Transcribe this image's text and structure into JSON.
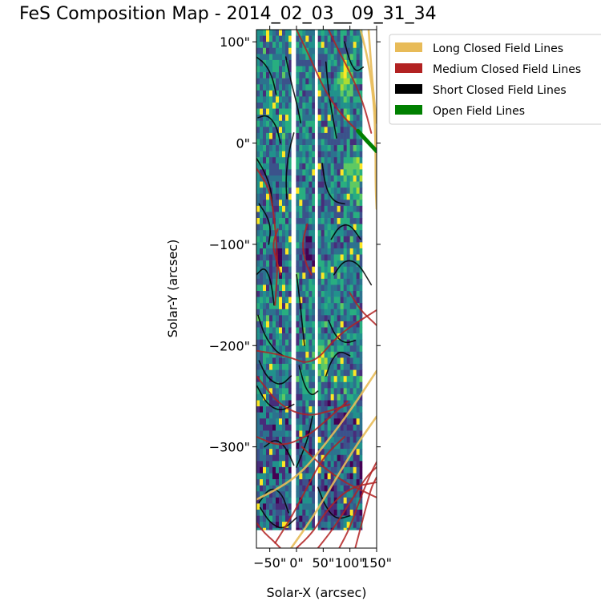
{
  "chart_data": {
    "type": "heatmap",
    "title": "FeS Composition Map - 2014_02_03__09_31_34",
    "xlabel": "Solar-X (arcsec)",
    "ylabel": "Solar-Y (arcsec)",
    "xlim": [
      -75,
      150
    ],
    "ylim": [
      -400,
      112
    ],
    "x_ticks": [
      {
        "value": -50,
        "label": "−50\""
      },
      {
        "value": 0,
        "label": "0\""
      },
      {
        "value": 50,
        "label": "50\""
      },
      {
        "value": 100,
        "label": "100\""
      },
      {
        "value": 150,
        "label": "150\""
      }
    ],
    "y_ticks": [
      {
        "value": 100,
        "label": "100\""
      },
      {
        "value": 0,
        "label": "0\""
      },
      {
        "value": -100,
        "label": "−100\""
      },
      {
        "value": -200,
        "label": "−200\""
      },
      {
        "value": -300,
        "label": "−300\""
      }
    ],
    "colormap": "viridis",
    "data_strips_x": [
      [
        -75,
        -10
      ],
      [
        -1,
        34
      ],
      [
        40,
        123
      ]
    ],
    "data_ylim": [
      -382,
      112
    ],
    "low_value_regions": [
      {
        "x": -35,
        "y": -110
      },
      {
        "x": 20,
        "y": -105
      }
    ],
    "high_value_regions": [
      {
        "x": 105,
        "y": -30
      },
      {
        "x": 90,
        "y": 70
      },
      {
        "x": 40,
        "y": -210
      }
    ],
    "legend": {
      "position": "upper-right-outside",
      "entries": [
        {
          "label": "Long Closed Field Lines",
          "color": "#e8bb58"
        },
        {
          "label": "Medium Closed Field Lines",
          "color": "#b22222"
        },
        {
          "label": "Short Closed Field Lines",
          "color": "#000000"
        },
        {
          "label": "Open Field Lines",
          "color": "#008000"
        }
      ]
    },
    "field_lines": {
      "short": [
        [
          [
            -75,
            85
          ],
          [
            -58,
            78
          ],
          [
            -45,
            65
          ],
          [
            -38,
            48
          ]
        ],
        [
          [
            -72,
            25
          ],
          [
            -55,
            28
          ],
          [
            -38,
            18
          ],
          [
            -30,
            0
          ]
        ],
        [
          [
            -75,
            -15
          ],
          [
            -60,
            -28
          ],
          [
            -48,
            -45
          ],
          [
            -45,
            -62
          ]
        ],
        [
          [
            -70,
            -60
          ],
          [
            -55,
            -72
          ],
          [
            -48,
            -85
          ],
          [
            -52,
            -100
          ]
        ],
        [
          [
            -75,
            -130
          ],
          [
            -60,
            -122
          ],
          [
            -48,
            -135
          ],
          [
            -42,
            -160
          ]
        ],
        [
          [
            -72,
            -170
          ],
          [
            -60,
            -190
          ],
          [
            -40,
            -205
          ],
          [
            -25,
            -210
          ]
        ],
        [
          [
            -70,
            -215
          ],
          [
            -55,
            -232
          ],
          [
            -30,
            -240
          ],
          [
            -10,
            -230
          ]
        ],
        [
          [
            -74,
            -240
          ],
          [
            -55,
            -258
          ],
          [
            -30,
            -265
          ],
          [
            -5,
            -258
          ]
        ],
        [
          [
            -60,
            -300
          ],
          [
            -40,
            -292
          ],
          [
            -20,
            -300
          ],
          [
            -5,
            -318
          ]
        ],
        [
          [
            -70,
            -355
          ],
          [
            -50,
            -340
          ],
          [
            -28,
            -345
          ],
          [
            -15,
            -365
          ]
        ],
        [
          [
            -20,
            85
          ],
          [
            -10,
            60
          ],
          [
            0,
            40
          ],
          [
            8,
            20
          ]
        ],
        [
          [
            -5,
            10
          ],
          [
            -15,
            -10
          ],
          [
            -20,
            -35
          ],
          [
            -18,
            -55
          ]
        ],
        [
          [
            0,
            -130
          ],
          [
            5,
            -150
          ],
          [
            10,
            -175
          ],
          [
            15,
            -200
          ]
        ],
        [
          [
            5,
            -220
          ],
          [
            15,
            -240
          ],
          [
            28,
            -250
          ],
          [
            40,
            -245
          ]
        ],
        [
          [
            30,
            -270
          ],
          [
            22,
            -290
          ],
          [
            12,
            -305
          ],
          [
            0,
            -320
          ]
        ],
        [
          [
            55,
            80
          ],
          [
            60,
            50
          ],
          [
            68,
            25
          ],
          [
            75,
            5
          ]
        ],
        [
          [
            48,
            -20
          ],
          [
            55,
            -45
          ],
          [
            70,
            -58
          ],
          [
            90,
            -60
          ]
        ],
        [
          [
            65,
            -95
          ],
          [
            80,
            -82
          ],
          [
            100,
            -80
          ],
          [
            120,
            -95
          ]
        ],
        [
          [
            70,
            -130
          ],
          [
            90,
            -115
          ],
          [
            115,
            -118
          ],
          [
            140,
            -140
          ]
        ],
        [
          [
            60,
            -175
          ],
          [
            72,
            -190
          ],
          [
            90,
            -198
          ],
          [
            110,
            -195
          ]
        ],
        [
          [
            55,
            -230
          ],
          [
            65,
            -215
          ],
          [
            80,
            -205
          ],
          [
            100,
            -210
          ]
        ],
        [
          [
            90,
            100
          ],
          [
            100,
            80
          ],
          [
            112,
            70
          ],
          [
            125,
            75
          ]
        ],
        [
          [
            -68,
            -360
          ],
          [
            -50,
            -375
          ],
          [
            -25,
            -382
          ],
          [
            0,
            -370
          ]
        ],
        [
          [
            40,
            -340
          ],
          [
            55,
            -360
          ],
          [
            75,
            -372
          ],
          [
            100,
            -368
          ]
        ]
      ],
      "medium": [
        [
          [
            0,
            112
          ],
          [
            25,
            85
          ],
          [
            50,
            55
          ],
          [
            80,
            30
          ],
          [
            118,
            10
          ]
        ],
        [
          [
            60,
            112
          ],
          [
            80,
            90
          ],
          [
            100,
            70
          ],
          [
            125,
            40
          ],
          [
            140,
            10
          ]
        ],
        [
          [
            -75,
            -25
          ],
          [
            -50,
            -45
          ],
          [
            -40,
            -80
          ],
          [
            -35,
            -120
          ],
          [
            -40,
            -160
          ]
        ],
        [
          [
            -75,
            -230
          ],
          [
            -30,
            -260
          ],
          [
            20,
            -270
          ],
          [
            60,
            -265
          ],
          [
            100,
            -258
          ]
        ],
        [
          [
            -75,
            -290
          ],
          [
            -30,
            -300
          ],
          [
            20,
            -290
          ],
          [
            60,
            -272
          ],
          [
            95,
            -255
          ]
        ],
        [
          [
            -75,
            -205
          ],
          [
            -20,
            -210
          ],
          [
            30,
            -220
          ],
          [
            80,
            -188
          ],
          [
            150,
            -165
          ]
        ],
        [
          [
            10,
            -300
          ],
          [
            50,
            -320
          ],
          [
            90,
            -335
          ],
          [
            130,
            -345
          ],
          [
            150,
            -350
          ]
        ],
        [
          [
            -40,
            -395
          ],
          [
            -10,
            -370
          ],
          [
            20,
            -340
          ],
          [
            50,
            -310
          ],
          [
            90,
            -290
          ]
        ],
        [
          [
            0,
            -400
          ],
          [
            30,
            -385
          ],
          [
            60,
            -360
          ],
          [
            100,
            -340
          ],
          [
            150,
            -335
          ]
        ],
        [
          [
            40,
            -400
          ],
          [
            70,
            -380
          ],
          [
            100,
            -355
          ],
          [
            130,
            -330
          ],
          [
            150,
            -320
          ]
        ],
        [
          [
            80,
            -400
          ],
          [
            100,
            -380
          ],
          [
            120,
            -350
          ],
          [
            140,
            -325
          ],
          [
            150,
            -315
          ]
        ],
        [
          [
            110,
            -400
          ],
          [
            125,
            -370
          ],
          [
            140,
            -340
          ],
          [
            150,
            -330
          ]
        ],
        [
          [
            -75,
            -375
          ],
          [
            -60,
            -385
          ],
          [
            -45,
            -392
          ],
          [
            -30,
            -400
          ]
        ],
        [
          [
            100,
            -148
          ],
          [
            120,
            -165
          ],
          [
            140,
            -175
          ],
          [
            150,
            -180
          ]
        ],
        [
          [
            -35,
            -85
          ],
          [
            -45,
            -100
          ],
          [
            -38,
            -115
          ],
          [
            -30,
            -130
          ]
        ],
        [
          [
            20,
            -80
          ],
          [
            10,
            -100
          ],
          [
            18,
            -120
          ],
          [
            28,
            -130
          ]
        ]
      ],
      "long": [
        [
          [
            -75,
            -352
          ],
          [
            -30,
            -340
          ],
          [
            10,
            -325
          ],
          [
            50,
            -300
          ],
          [
            100,
            -265
          ],
          [
            150,
            -225
          ]
        ],
        [
          [
            -10,
            -400
          ],
          [
            30,
            -370
          ],
          [
            70,
            -335
          ],
          [
            110,
            -300
          ],
          [
            150,
            -270
          ]
        ],
        [
          [
            120,
            112
          ],
          [
            135,
            80
          ],
          [
            145,
            40
          ],
          [
            148,
            0
          ],
          [
            148,
            -40
          ],
          [
            150,
            -65
          ]
        ],
        [
          [
            135,
            112
          ],
          [
            142,
            60
          ],
          [
            150,
            20
          ]
        ]
      ],
      "open": [
        [
          [
            115,
            12
          ],
          [
            132,
            2
          ],
          [
            150,
            -8
          ]
        ]
      ]
    }
  }
}
